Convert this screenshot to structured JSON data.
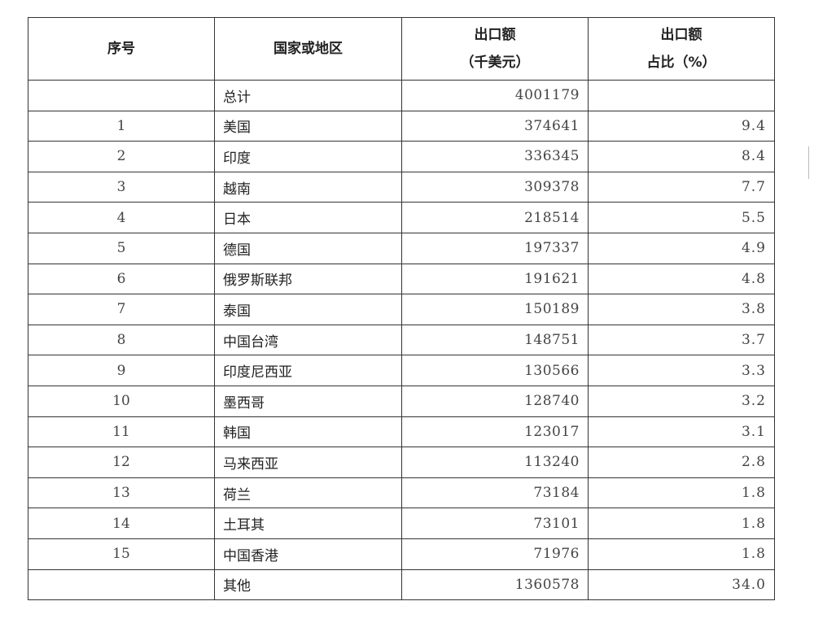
{
  "table": {
    "headers": {
      "index": "序号",
      "country": "国家或地区",
      "amount_line1": "出口额",
      "amount_line2": "（千美元）",
      "share_line1": "出口额",
      "share_line2": "占比（%）"
    },
    "rows": [
      {
        "index": "",
        "country": "总计",
        "amount": "4001179",
        "share": ""
      },
      {
        "index": "1",
        "country": "美国",
        "amount": "374641",
        "share": "9.4"
      },
      {
        "index": "2",
        "country": "印度",
        "amount": "336345",
        "share": "8.4"
      },
      {
        "index": "3",
        "country": "越南",
        "amount": "309378",
        "share": "7.7"
      },
      {
        "index": "4",
        "country": "日本",
        "amount": "218514",
        "share": "5.5"
      },
      {
        "index": "5",
        "country": "德国",
        "amount": "197337",
        "share": "4.9"
      },
      {
        "index": "6",
        "country": "俄罗斯联邦",
        "amount": "191621",
        "share": "4.8"
      },
      {
        "index": "7",
        "country": "泰国",
        "amount": "150189",
        "share": "3.8"
      },
      {
        "index": "8",
        "country": "中国台湾",
        "amount": "148751",
        "share": "3.7"
      },
      {
        "index": "9",
        "country": "印度尼西亚",
        "amount": "130566",
        "share": "3.3"
      },
      {
        "index": "10",
        "country": "墨西哥",
        "amount": "128740",
        "share": "3.2"
      },
      {
        "index": "11",
        "country": "韩国",
        "amount": "123017",
        "share": "3.1"
      },
      {
        "index": "12",
        "country": "马来西亚",
        "amount": "113240",
        "share": "2.8"
      },
      {
        "index": "13",
        "country": "荷兰",
        "amount": "73184",
        "share": "1.8"
      },
      {
        "index": "14",
        "country": "土耳其",
        "amount": "73101",
        "share": "1.8"
      },
      {
        "index": "15",
        "country": "中国香港",
        "amount": "71976",
        "share": "1.8"
      },
      {
        "index": "",
        "country": "其他",
        "amount": "1360578",
        "share": "34.0"
      }
    ]
  }
}
